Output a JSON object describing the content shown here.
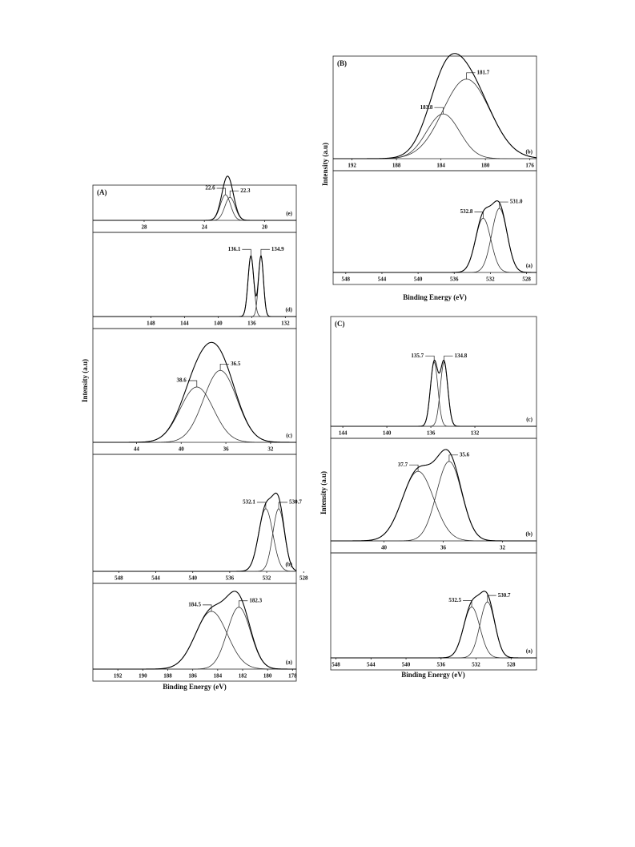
{
  "chart_data": [
    {
      "type": "xps",
      "label": "(A)",
      "xlabel": "Binding Energy (eV)",
      "ylabel": "Intensity (a.u)",
      "panels": [
        {
          "label": "(e)",
          "xlim": [
            31.4,
            17.9
          ],
          "xticks": [
            28,
            24,
            20
          ],
          "peaks": [
            {
              "center": 22.6,
              "height": 80,
              "width": 0.8
            },
            {
              "center": 22.3,
              "height": 72,
              "width": 0.8
            }
          ]
        },
        {
          "label": "(d)",
          "xlim": [
            154.9,
            130.7
          ],
          "xticks": [
            148,
            144,
            140,
            136,
            132
          ],
          "peaks": [
            {
              "center": 136.1,
              "height": 75,
              "width": 0.8
            },
            {
              "center": 134.9,
              "height": 75,
              "width": 0.7
            }
          ]
        },
        {
          "label": "(c)",
          "xlim": [
            47.9,
            29.7
          ],
          "xticks": [
            44,
            40,
            36,
            32
          ],
          "peaks": [
            {
              "center": 38.6,
              "height": 50,
              "width": 3.5
            },
            {
              "center": 36.5,
              "height": 65,
              "width": 3.5
            }
          ]
        },
        {
          "label": "(b)",
          "xlim": [
            550.8,
            528.8
          ],
          "xticks": [
            548,
            544,
            540,
            536,
            532,
            528
          ],
          "peaks": [
            {
              "center": 532.1,
              "height": 55,
              "width": 1.8
            },
            {
              "center": 530.7,
              "height": 55,
              "width": 1.5
            }
          ]
        },
        {
          "label": "(a)",
          "xlim": [
            194,
            177.7
          ],
          "xticks": [
            192,
            190,
            188,
            186,
            184,
            182,
            180,
            178
          ],
          "peaks": [
            {
              "center": 184.5,
              "height": 70,
              "width": 3
            },
            {
              "center": 182.3,
              "height": 75,
              "width": 2.2
            }
          ]
        }
      ]
    },
    {
      "type": "xps",
      "label": "(B)",
      "xlabel": "Binding Energy (eV)",
      "ylabel": "Intensity (a.u)",
      "panels": [
        {
          "label": "(b)",
          "xlim": [
            193.7,
            175.4
          ],
          "xticks": [
            192,
            188,
            184,
            180,
            176
          ],
          "peaks": [
            {
              "center": 183.8,
              "height": 45,
              "width": 3.5
            },
            {
              "center": 181.7,
              "height": 80,
              "width": 5
            }
          ]
        },
        {
          "label": "(a)",
          "xlim": [
            549.4,
            526.9
          ],
          "xticks": [
            548,
            544,
            540,
            536,
            532,
            528
          ],
          "peaks": [
            {
              "center": 532.8,
              "height": 55,
              "width": 2
            },
            {
              "center": 531.0,
              "label": "531.0",
              "height": 65,
              "width": 2
            }
          ]
        }
      ]
    },
    {
      "type": "xps",
      "label": "(C)",
      "xlabel": "Binding Energy (eV)",
      "ylabel": "Intensity (a.u)",
      "panels": [
        {
          "label": "(c)",
          "xlim": [
            145.1,
            126.4
          ],
          "xticks": [
            144,
            140,
            136,
            132
          ],
          "peaks": [
            {
              "center": 135.7,
              "height": 60,
              "width": 0.8
            },
            {
              "center": 134.8,
              "height": 60,
              "width": 0.8
            }
          ]
        },
        {
          "label": "(b)",
          "xlim": [
            43.6,
            29.7
          ],
          "xticks": [
            40,
            36,
            32
          ],
          "peaks": [
            {
              "center": 37.7,
              "height": 70,
              "width": 2.5
            },
            {
              "center": 35.6,
              "height": 80,
              "width": 2
            }
          ]
        },
        {
          "label": "(a)",
          "xlim": [
            548.6,
            525.1
          ],
          "xticks": [
            548,
            544,
            540,
            536,
            532,
            528
          ],
          "peaks": [
            {
              "center": 532.5,
              "height": 50,
              "width": 2.2
            },
            {
              "center": 530.7,
              "height": 55,
              "width": 2
            }
          ]
        }
      ]
    }
  ]
}
